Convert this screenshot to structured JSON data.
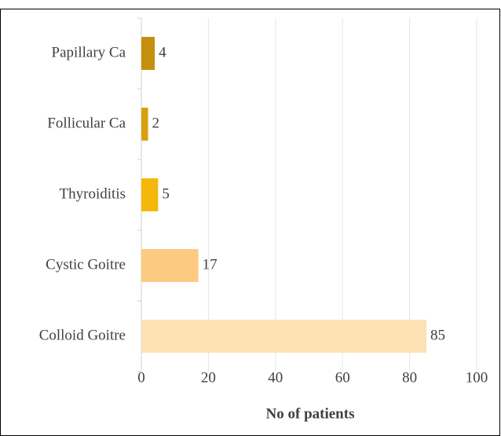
{
  "chart_data": {
    "type": "barh",
    "categories": [
      "Papillary Ca",
      "Follicular Ca",
      "Thyroiditis",
      "Cystic Goitre",
      "Colloid Goitre"
    ],
    "values": [
      4,
      2,
      5,
      17,
      85
    ],
    "colors": [
      "#c48f0c",
      "#d9a00e",
      "#f5b80a",
      "#fdca82",
      "#fde1b4"
    ],
    "x_label": "No of patients",
    "xlim": [
      0,
      100
    ],
    "xticks": [
      0,
      20,
      40,
      60,
      80,
      100
    ],
    "grid": true
  }
}
